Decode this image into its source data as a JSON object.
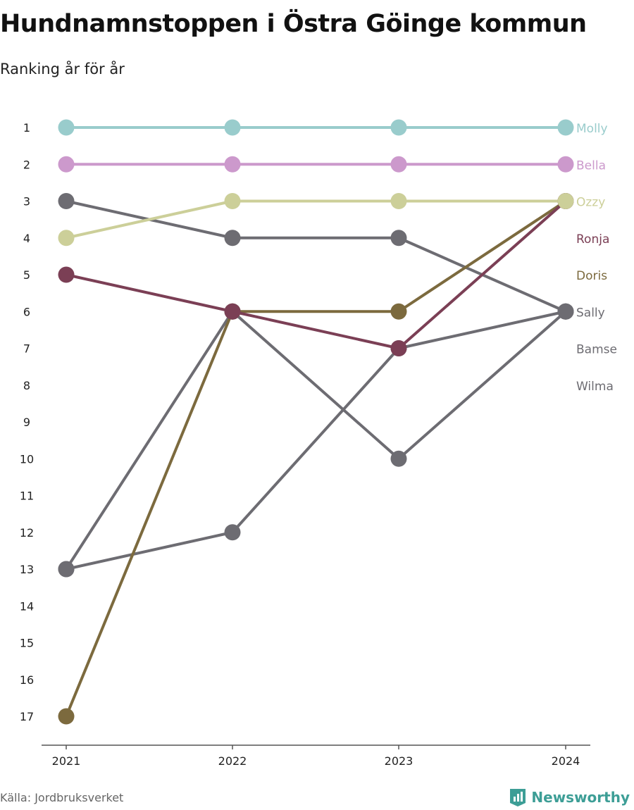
{
  "header": {
    "title": "Hundnamnstoppen i Östra Göinge kommun",
    "subtitle": "Ranking år för år"
  },
  "footer": {
    "source": "Källa: Jordbruksverket",
    "brand": "Newsworthy",
    "brand_icon": "bar-chart-logo-icon"
  },
  "colors": {
    "axis": "#555555",
    "tick_text": "#222222",
    "brand": "#3d9e96"
  },
  "chart_data": {
    "type": "line",
    "subtype": "bump",
    "title": "Hundnamnstoppen i Östra Göinge kommun",
    "subtitle": "Ranking år för år",
    "x": [
      "2021",
      "2022",
      "2023",
      "2024"
    ],
    "y_ticks": [
      1,
      2,
      3,
      4,
      5,
      6,
      7,
      8,
      9,
      10,
      11,
      12,
      13,
      14,
      15,
      16,
      17
    ],
    "ylim": [
      1,
      17
    ],
    "y_inverted": true,
    "grid": false,
    "series": [
      {
        "name": "Wilma",
        "color": "#6d6c72",
        "values": [
          13,
          12,
          7,
          6
        ]
      },
      {
        "name": "Bamse",
        "color": "#6d6c72",
        "values": [
          13,
          6,
          10,
          6
        ]
      },
      {
        "name": "Sally",
        "color": "#6d6c72",
        "values": [
          3,
          4,
          4,
          6
        ]
      },
      {
        "name": "Doris",
        "color": "#7c6a3e",
        "values": [
          17,
          6,
          6,
          3
        ]
      },
      {
        "name": "Ronja",
        "color": "#7b3f55",
        "values": [
          5,
          6,
          7,
          3
        ]
      },
      {
        "name": "Ozzy",
        "color": "#cccf99",
        "values": [
          4,
          3,
          3,
          3
        ]
      },
      {
        "name": "Bella",
        "color": "#cc99cc",
        "values": [
          2,
          2,
          2,
          2
        ]
      },
      {
        "name": "Molly",
        "color": "#99cccc",
        "values": [
          1,
          1,
          1,
          1
        ]
      }
    ],
    "legend": {
      "placement": "right",
      "order": [
        "Molly",
        "Bella",
        "Ozzy",
        "Ronja",
        "Doris",
        "Sally",
        "Bamse",
        "Wilma"
      ]
    }
  }
}
